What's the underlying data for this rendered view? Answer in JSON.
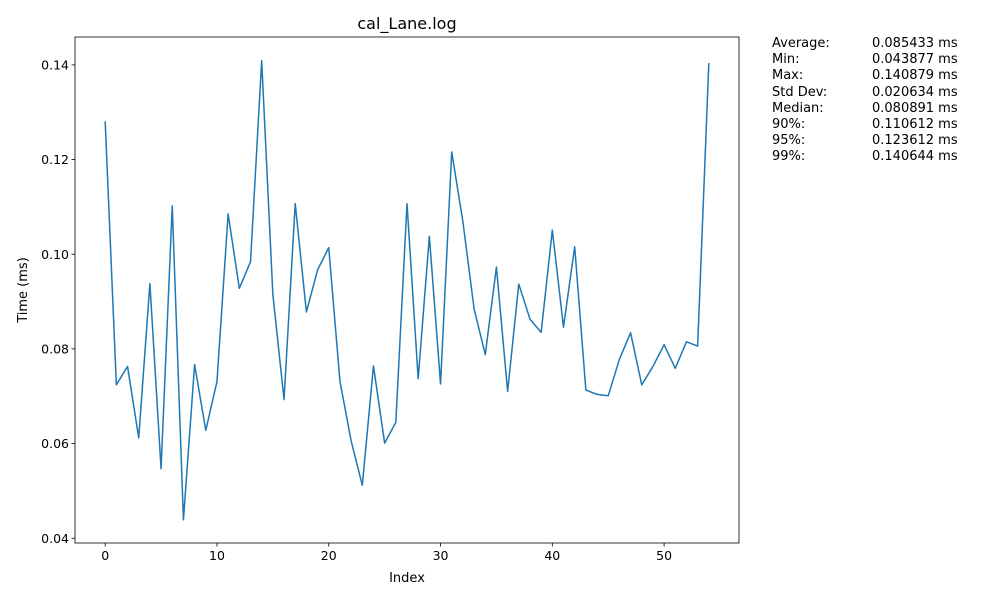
{
  "chart_data": {
    "type": "line",
    "title": "cal_Lane.log",
    "xlabel": "Index",
    "ylabel": "Time (ms)",
    "xlim": [
      -2.7,
      56.7
    ],
    "ylim": [
      0.039,
      0.1459
    ],
    "xticks": [
      0,
      10,
      20,
      30,
      40,
      50
    ],
    "yticks": [
      0.04,
      0.06,
      0.08,
      0.1,
      0.12,
      0.14
    ],
    "xtick_labels": [
      "0",
      "10",
      "20",
      "30",
      "40",
      "50"
    ],
    "ytick_labels": [
      "0.04",
      "0.06",
      "0.08",
      "0.10",
      "0.12",
      "0.14"
    ],
    "grid": false,
    "line_color": "#1f77b4",
    "series": [
      {
        "x": [
          0,
          1,
          2,
          3,
          4,
          5,
          6,
          7,
          8,
          9,
          10,
          11,
          12,
          13,
          14,
          15,
          16,
          17,
          18,
          19,
          20,
          21,
          22,
          23,
          24,
          25,
          26,
          27,
          28,
          29,
          30,
          31,
          32,
          33,
          34,
          35,
          36,
          37,
          38,
          39,
          40,
          41,
          42,
          43,
          44,
          45,
          46,
          47,
          48,
          49,
          50,
          51,
          52,
          53,
          54
        ],
        "values": [
          0.1281,
          0.0724,
          0.0763,
          0.0612,
          0.0938,
          0.0547,
          0.1102,
          0.0439,
          0.0767,
          0.0628,
          0.0731,
          0.1085,
          0.0928,
          0.0984,
          0.1409,
          0.0915,
          0.0693,
          0.1107,
          0.0878,
          0.0967,
          0.1014,
          0.0732,
          0.0606,
          0.0512,
          0.0764,
          0.0601,
          0.0645,
          0.1107,
          0.0737,
          0.1038,
          0.0726,
          0.1216,
          0.1069,
          0.0885,
          0.0788,
          0.0973,
          0.071,
          0.0937,
          0.0863,
          0.0835,
          0.1051,
          0.0846,
          0.1016,
          0.0713,
          0.0704,
          0.0701,
          0.0778,
          0.0834,
          0.0724,
          0.0763,
          0.0809,
          0.0759,
          0.0815,
          0.0806,
          0.1404
        ]
      }
    ]
  },
  "stats": [
    {
      "label": "Average:",
      "value": "0.085433 ms"
    },
    {
      "label": "Min:",
      "value": "0.043877 ms"
    },
    {
      "label": "Max:",
      "value": "0.140879 ms"
    },
    {
      "label": "Std Dev:",
      "value": "0.020634 ms"
    },
    {
      "label": "Median:",
      "value": "0.080891 ms"
    },
    {
      "label": "90%:",
      "value": "0.110612 ms"
    },
    {
      "label": "95%:",
      "value": "0.123612 ms"
    },
    {
      "label": "99%:",
      "value": "0.140644 ms"
    }
  ]
}
